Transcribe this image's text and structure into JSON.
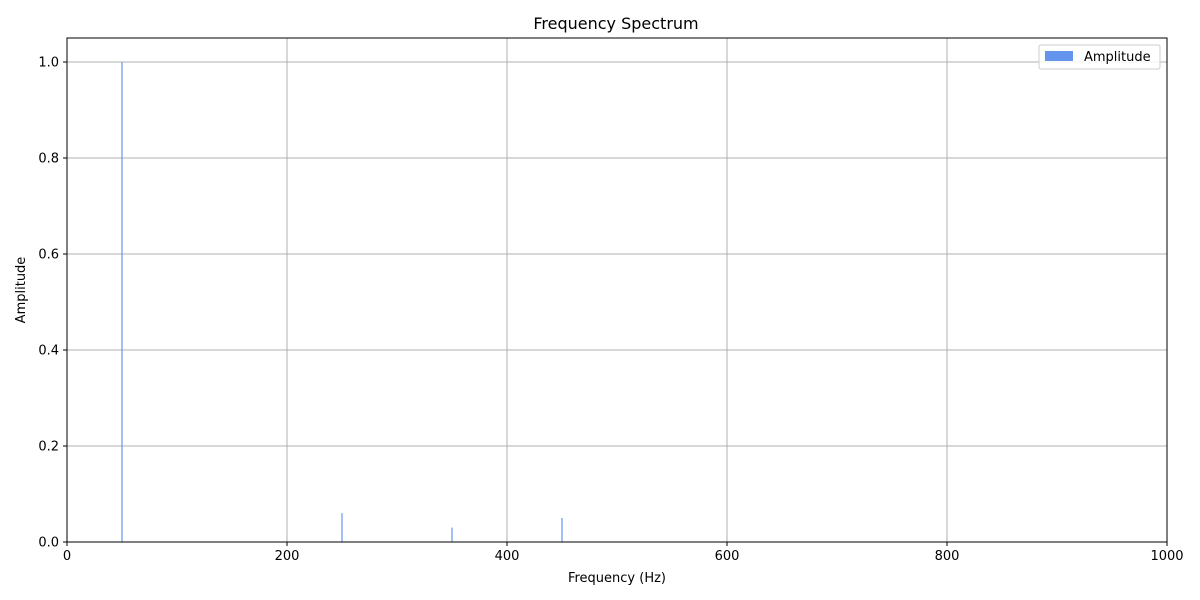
{
  "chart_data": {
    "type": "bar",
    "title": "Frequency Spectrum",
    "xlabel": "Frequency (Hz)",
    "ylabel": "Amplitude",
    "xlim": [
      0,
      1000
    ],
    "ylim": [
      0,
      1.05
    ],
    "xticks": [
      0,
      200,
      400,
      600,
      800,
      1000
    ],
    "yticks": [
      0.0,
      0.2,
      0.4,
      0.6,
      0.8,
      1.0
    ],
    "xtick_labels": [
      "0",
      "200",
      "400",
      "600",
      "800",
      "1000"
    ],
    "ytick_labels": [
      "0.0",
      "0.2",
      "0.4",
      "0.6",
      "0.8",
      "1.0"
    ],
    "grid": true,
    "legend": {
      "placement": "upper-right",
      "entries": [
        "Amplitude"
      ]
    },
    "series": [
      {
        "name": "Amplitude",
        "color": "#6495ed",
        "points": [
          {
            "x": 50,
            "y": 1.0
          },
          {
            "x": 250,
            "y": 0.06
          },
          {
            "x": 350,
            "y": 0.03
          },
          {
            "x": 450,
            "y": 0.05
          }
        ]
      }
    ]
  }
}
